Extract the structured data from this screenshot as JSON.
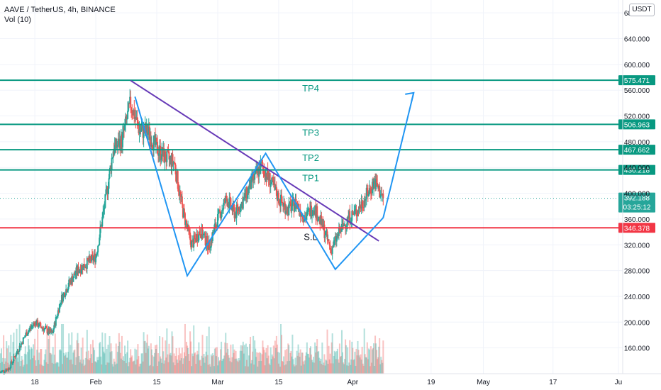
{
  "header": {
    "symbol_line": "AAVE / TetherUS, 4h, BINANCE",
    "volume_label": "Vol (10)",
    "currency": "USDT"
  },
  "colors": {
    "up": "#26a69a",
    "down": "#ef5350",
    "level": "#089981",
    "stop": "#f23645",
    "trend": "#673ab7",
    "pattern": "#2196f3",
    "current_price": "#26a69a"
  },
  "chart_data": {
    "type": "candlestick",
    "ylim": [
      120,
      700
    ],
    "y_ticks": [
      "680.000",
      "640.000",
      "600.000",
      "560.000",
      "520.000",
      "480.000",
      "440.000",
      "400.000",
      "360.000",
      "320.000",
      "280.000",
      "240.000",
      "200.000",
      "160.000"
    ],
    "y_tick_values": [
      680,
      640,
      600,
      560,
      520,
      480,
      440,
      400,
      360,
      320,
      280,
      240,
      200,
      160
    ],
    "x_ticks": [
      {
        "label": "18",
        "date": "2021-01-18"
      },
      {
        "label": "Feb",
        "date": "2021-02-01"
      },
      {
        "label": "15",
        "date": "2021-02-15"
      },
      {
        "label": "Mar",
        "date": "2021-03-01"
      },
      {
        "label": "15",
        "date": "2021-03-15"
      },
      {
        "label": "Apr",
        "date": "2021-04-01"
      },
      {
        "label": "19",
        "date": "2021-04-19"
      },
      {
        "label": "May",
        "date": "2021-05-01"
      },
      {
        "label": "17",
        "date": "2021-05-17"
      },
      {
        "label": "Ju",
        "date": "2021-06-01"
      }
    ],
    "x_range": [
      "2021-01-10",
      "2021-06-02"
    ],
    "levels": [
      {
        "name": "TP4",
        "value": 575.471,
        "label": "575.471"
      },
      {
        "name": "TP3",
        "value": 506.963,
        "label": "506.963"
      },
      {
        "name": "TP2",
        "value": 467.662,
        "label": "467.662"
      },
      {
        "name": "TP1",
        "value": 436.218,
        "label": "436.218"
      },
      {
        "name": "S.L",
        "value": 346.378,
        "label": "346.378"
      }
    ],
    "current_price": {
      "value": 392.188,
      "label": "392.188",
      "countdown": "03:25:12"
    },
    "trendline": [
      [
        "2021-02-09",
        575
      ],
      [
        "2021-04-07",
        326
      ]
    ],
    "pattern_path": [
      [
        "2021-02-10",
        550
      ],
      [
        "2021-02-22",
        272
      ],
      [
        "2021-03-12",
        462
      ],
      [
        "2021-03-28",
        282
      ],
      [
        "2021-04-08",
        362
      ]
    ],
    "projection": [
      [
        "2021-04-08",
        362
      ],
      [
        "2021-04-15",
        556
      ]
    ],
    "close_series": [
      {
        "date": "2021-01-10",
        "close": 122
      },
      {
        "date": "2021-01-12",
        "close": 128
      },
      {
        "date": "2021-01-14",
        "close": 155
      },
      {
        "date": "2021-01-16",
        "close": 182
      },
      {
        "date": "2021-01-18",
        "close": 200
      },
      {
        "date": "2021-01-20",
        "close": 190
      },
      {
        "date": "2021-01-22",
        "close": 182
      },
      {
        "date": "2021-01-24",
        "close": 235
      },
      {
        "date": "2021-01-26",
        "close": 262
      },
      {
        "date": "2021-01-28",
        "close": 282
      },
      {
        "date": "2021-01-30",
        "close": 292
      },
      {
        "date": "2021-02-01",
        "close": 302
      },
      {
        "date": "2021-02-03",
        "close": 380
      },
      {
        "date": "2021-02-05",
        "close": 468
      },
      {
        "date": "2021-02-07",
        "close": 482
      },
      {
        "date": "2021-02-09",
        "close": 540
      },
      {
        "date": "2021-02-11",
        "close": 498
      },
      {
        "date": "2021-02-13",
        "close": 495
      },
      {
        "date": "2021-02-15",
        "close": 470
      },
      {
        "date": "2021-02-17",
        "close": 455
      },
      {
        "date": "2021-02-19",
        "close": 448
      },
      {
        "date": "2021-02-21",
        "close": 372
      },
      {
        "date": "2021-02-23",
        "close": 320
      },
      {
        "date": "2021-02-25",
        "close": 342
      },
      {
        "date": "2021-02-27",
        "close": 318
      },
      {
        "date": "2021-03-01",
        "close": 360
      },
      {
        "date": "2021-03-03",
        "close": 392
      },
      {
        "date": "2021-03-05",
        "close": 368
      },
      {
        "date": "2021-03-07",
        "close": 390
      },
      {
        "date": "2021-03-09",
        "close": 420
      },
      {
        "date": "2021-03-11",
        "close": 442
      },
      {
        "date": "2021-03-13",
        "close": 420
      },
      {
        "date": "2021-03-15",
        "close": 392
      },
      {
        "date": "2021-03-17",
        "close": 375
      },
      {
        "date": "2021-03-19",
        "close": 385
      },
      {
        "date": "2021-03-21",
        "close": 362
      },
      {
        "date": "2021-03-23",
        "close": 380
      },
      {
        "date": "2021-03-25",
        "close": 350
      },
      {
        "date": "2021-03-27",
        "close": 312
      },
      {
        "date": "2021-03-29",
        "close": 340
      },
      {
        "date": "2021-03-31",
        "close": 362
      },
      {
        "date": "2021-04-02",
        "close": 372
      },
      {
        "date": "2021-04-04",
        "close": 395
      },
      {
        "date": "2021-04-06",
        "close": 418
      },
      {
        "date": "2021-04-08",
        "close": 392
      }
    ]
  }
}
